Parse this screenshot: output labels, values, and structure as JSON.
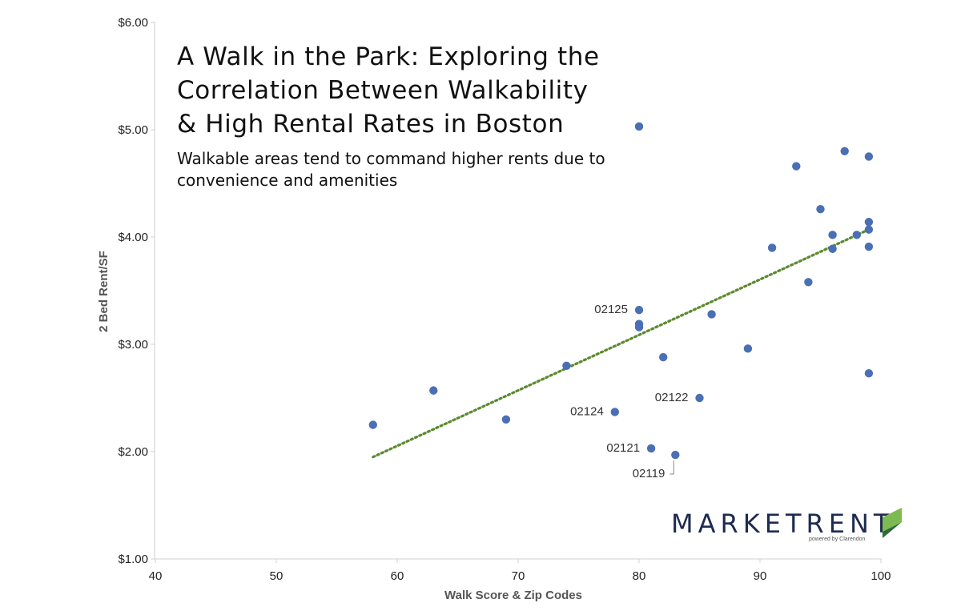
{
  "chart_data": {
    "type": "scatter",
    "title_lines": [
      "A Walk in the Park: Exploring the",
      "Correlation Between Walkability",
      "& High Rental Rates in Boston"
    ],
    "subtitle_lines": [
      "Walkable areas tend to command higher rents due to",
      "convenience and amenities"
    ],
    "xlabel": "Walk Score & Zip Codes",
    "ylabel": "2 Bed Rent/SF",
    "xlim": [
      40,
      100
    ],
    "ylim": [
      1.0,
      6.0
    ],
    "x_ticks": [
      "40",
      "50",
      "60",
      "70",
      "80",
      "90",
      "100"
    ],
    "y_ticks": [
      "$1.00",
      "$2.00",
      "$3.00",
      "$4.00",
      "$5.00",
      "$6.00"
    ],
    "grid": false,
    "colors": {
      "points": "#4a6fb5",
      "trendline": "#5a8a2e"
    },
    "trendline": {
      "style": "dotted",
      "x": [
        58,
        99
      ],
      "y": [
        1.95,
        4.07
      ]
    },
    "points": [
      {
        "x": 58,
        "y": 2.25
      },
      {
        "x": 63,
        "y": 2.57
      },
      {
        "x": 69,
        "y": 2.3
      },
      {
        "x": 74,
        "y": 2.8
      },
      {
        "x": 78,
        "y": 2.37,
        "label": "02124"
      },
      {
        "x": 80,
        "y": 5.03
      },
      {
        "x": 80,
        "y": 3.32,
        "label": "02125"
      },
      {
        "x": 80,
        "y": 3.19
      },
      {
        "x": 80,
        "y": 3.16
      },
      {
        "x": 81,
        "y": 2.03,
        "label": "02121"
      },
      {
        "x": 82,
        "y": 2.88
      },
      {
        "x": 83,
        "y": 1.97,
        "label": "02119"
      },
      {
        "x": 85,
        "y": 2.5,
        "label": "02122"
      },
      {
        "x": 86,
        "y": 3.28
      },
      {
        "x": 89,
        "y": 2.96
      },
      {
        "x": 91,
        "y": 3.9
      },
      {
        "x": 93,
        "y": 4.66
      },
      {
        "x": 94,
        "y": 3.58
      },
      {
        "x": 95,
        "y": 4.26
      },
      {
        "x": 96,
        "y": 4.02
      },
      {
        "x": 96,
        "y": 3.89
      },
      {
        "x": 97,
        "y": 4.8
      },
      {
        "x": 98,
        "y": 4.02
      },
      {
        "x": 99,
        "y": 4.75
      },
      {
        "x": 99,
        "y": 4.14
      },
      {
        "x": 99,
        "y": 4.07
      },
      {
        "x": 99,
        "y": 3.91
      },
      {
        "x": 99,
        "y": 2.73
      }
    ]
  },
  "logo": {
    "text": "MARKETRENT",
    "tagline": "powered by Clarendon",
    "colors": {
      "text": "#1e2b50",
      "mark_light": "#7dbb52",
      "mark_dark": "#2f6b3a"
    }
  }
}
